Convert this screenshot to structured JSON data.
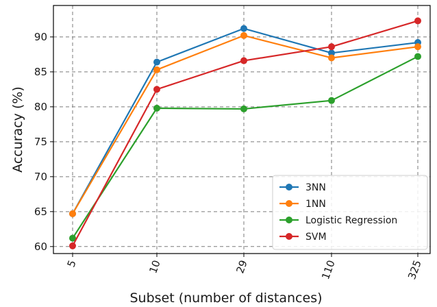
{
  "chart_data": {
    "type": "line",
    "categories": [
      "5",
      "10",
      "29",
      "110",
      "325"
    ],
    "series": [
      {
        "name": "3NN",
        "color": "#1f77b4",
        "values": [
          64.7,
          86.4,
          91.2,
          87.7,
          89.2
        ]
      },
      {
        "name": "1NN",
        "color": "#ff7f0e",
        "values": [
          64.7,
          85.3,
          90.2,
          87.0,
          88.6
        ]
      },
      {
        "name": "Logistic Regression",
        "color": "#2ca02c",
        "values": [
          61.2,
          79.8,
          79.7,
          80.9,
          87.2
        ]
      },
      {
        "name": "SVM",
        "color": "#d62728",
        "values": [
          60.1,
          82.5,
          86.6,
          88.6,
          92.3
        ]
      }
    ],
    "xlabel": "Subset (number of distances)",
    "ylabel": "Accuracy (%)",
    "ylim": [
      59,
      94.5
    ],
    "yticks": [
      60,
      65,
      70,
      75,
      80,
      85,
      90
    ],
    "grid": true,
    "grid_style": "dashed",
    "legend_position": "lower-right",
    "x_tick_rotation": "rotated"
  }
}
